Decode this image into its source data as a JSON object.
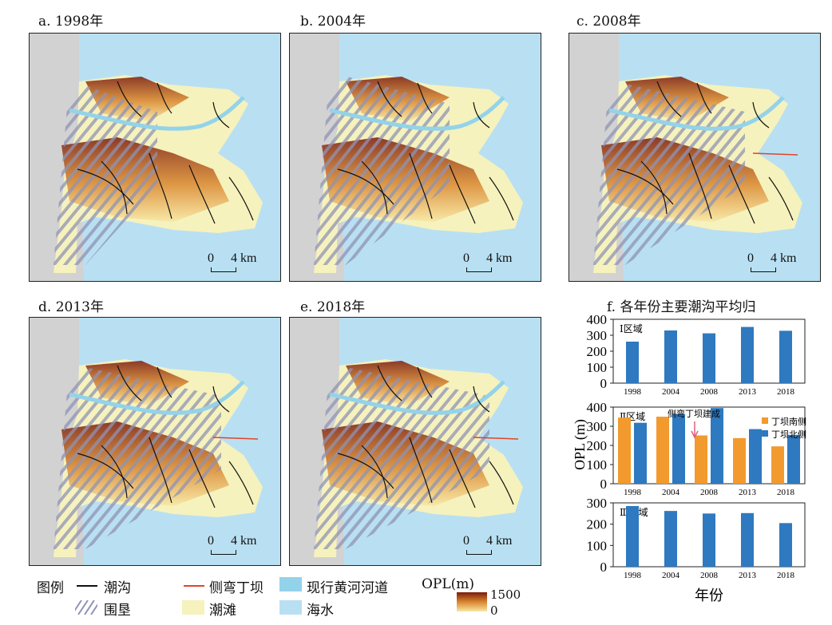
{
  "maps": [
    {
      "id": "a",
      "title": "a. 1998年",
      "scale_zero": "0",
      "scale_label": "4 km"
    },
    {
      "id": "b",
      "title": "b. 2004年",
      "scale_zero": "0",
      "scale_label": "4 km"
    },
    {
      "id": "c",
      "title": "c. 2008年",
      "scale_zero": "0",
      "scale_label": "4 km"
    },
    {
      "id": "d",
      "title": "d. 2013年",
      "scale_zero": "0",
      "scale_label": "4 km"
    },
    {
      "id": "e",
      "title": "e. 2018年",
      "scale_zero": "0",
      "scale_label": "4 km"
    }
  ],
  "colors": {
    "sea": "#b9e0f2",
    "land_grey": "#d2d2d2",
    "tidal_flat": "#f6f2bd",
    "river": "#93d3ea",
    "creek": "#111111",
    "groin": "#e0452a",
    "hatch": "#8f93b5",
    "opl_high": "#7a1b0d",
    "opl_mid": "#d9862e",
    "opl_low": "#f8e7a3",
    "bar_blue": "#2e79bf",
    "bar_orange": "#f29a2e"
  },
  "legend": {
    "title": "图例",
    "items": [
      {
        "label": "潮沟",
        "icon": "line-icon"
      },
      {
        "label": "侧弯丁坝",
        "icon": "red-line-icon"
      },
      {
        "label": "现行黄河河道",
        "icon": "river-swatch-icon"
      },
      {
        "label": "围垦",
        "icon": "hatch-swatch-icon"
      },
      {
        "label": "潮滩",
        "icon": "tidal-flat-swatch-icon"
      },
      {
        "label": "海水",
        "icon": "sea-swatch-icon"
      }
    ],
    "opl_title": "OPL(m)",
    "opl_max": "1500",
    "opl_min": "0"
  },
  "chart_data": {
    "type": "bar",
    "title": "f. 各年份主要潮沟平均归",
    "xlabel": "年份",
    "ylabel": "OPL (m)",
    "categories": [
      "1998",
      "2004",
      "2008",
      "2013",
      "2018"
    ],
    "annotation": "侧弯丁坝建成",
    "legend_position": "right",
    "panels": [
      {
        "label": "Ⅰ区域",
        "ylim": [
          0,
          400
        ],
        "yticks": [
          0,
          100,
          200,
          300,
          400
        ],
        "series": [
          {
            "name": "",
            "color": "#2e79bf",
            "values": [
              260,
              330,
              312,
              352,
              328
            ]
          }
        ]
      },
      {
        "label": "Ⅱ区域",
        "ylim": [
          0,
          400
        ],
        "yticks": [
          0,
          100,
          200,
          300,
          400
        ],
        "series": [
          {
            "name": "丁坝南侧",
            "color": "#f29a2e",
            "values": [
              345,
              350,
              252,
              238,
              195
            ]
          },
          {
            "name": "丁坝北侧",
            "color": "#2e79bf",
            "values": [
              318,
              365,
              395,
              285,
              255
            ]
          }
        ]
      },
      {
        "label": "Ⅲ区域",
        "ylim": [
          0,
          300
        ],
        "yticks": [
          0,
          100,
          200,
          300
        ],
        "series": [
          {
            "name": "",
            "color": "#2e79bf",
            "values": [
              285,
              262,
              250,
              252,
              205
            ]
          }
        ]
      }
    ]
  }
}
